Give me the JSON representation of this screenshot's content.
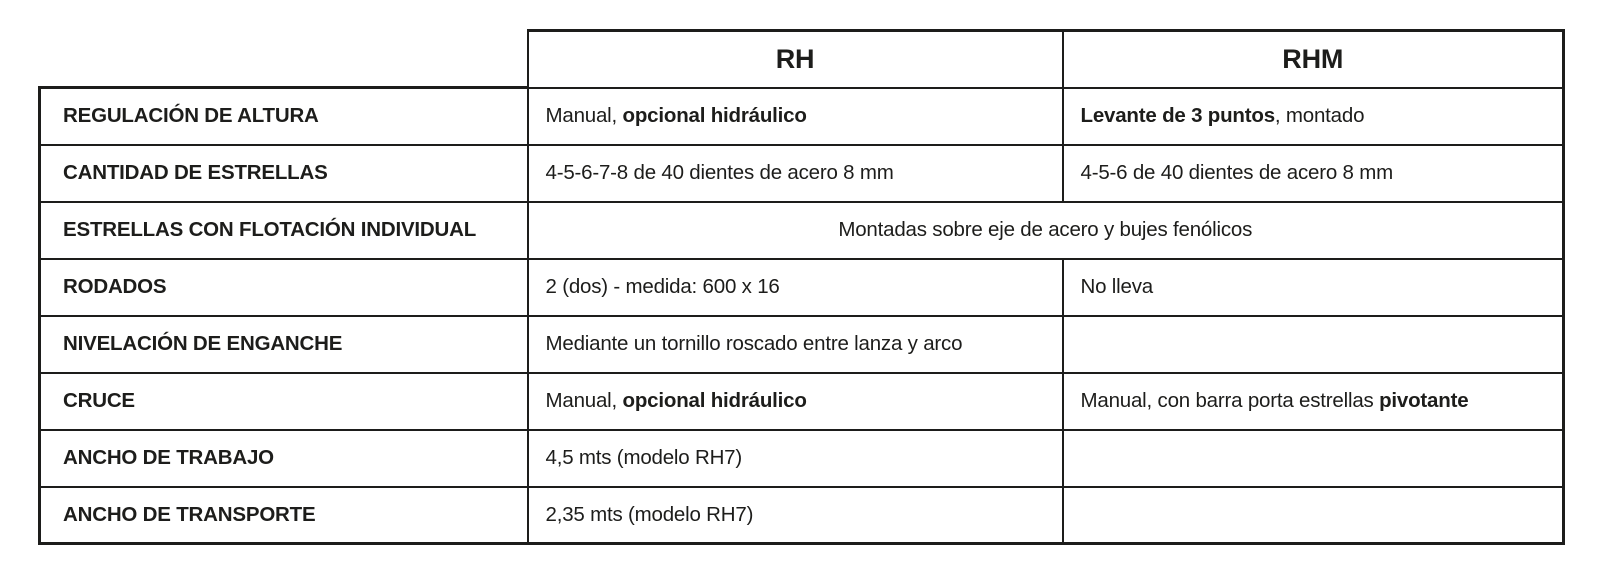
{
  "page": {
    "background_color": "#ffffff",
    "text_color": "#1d1d1b",
    "border_color": "#1d1d1b"
  },
  "table": {
    "header": {
      "col_rh": "RH",
      "col_rhm": "RHM"
    },
    "rows": [
      {
        "label": "REGULACIÓN DE ALTURA",
        "rh": {
          "pre": "Manual, ",
          "bold": "opcional hidráulico",
          "post": ""
        },
        "rhm": {
          "pre": "",
          "bold": "Levante de 3 puntos",
          "post": ", montado"
        }
      },
      {
        "label": "CANTIDAD DE ESTRELLAS",
        "rh": {
          "pre": "4-5-6-7-8 de 40 dientes de acero 8 mm",
          "bold": "",
          "post": ""
        },
        "rhm": {
          "pre": "4-5-6 de 40 dientes de acero 8 mm",
          "bold": "",
          "post": ""
        }
      },
      {
        "label": "ESTRELLAS CON FLOTACIÓN INDIVIDUAL",
        "merged": "Montadas sobre eje de acero y bujes fenólicos"
      },
      {
        "label": "RODADOS",
        "rh": {
          "pre": "2 (dos) - medida: 600 x 16",
          "bold": "",
          "post": ""
        },
        "rhm": {
          "pre": "No lleva",
          "bold": "",
          "post": ""
        }
      },
      {
        "label": "NIVELACIÓN DE ENGANCHE",
        "rh": {
          "pre": "Mediante un tornillo roscado entre lanza y arco",
          "bold": "",
          "post": ""
        },
        "rhm": {
          "pre": "",
          "bold": "",
          "post": ""
        }
      },
      {
        "label": "CRUCE",
        "rh": {
          "pre": "Manual, ",
          "bold": "opcional hidráulico",
          "post": ""
        },
        "rhm": {
          "pre": "Manual, con barra porta estrellas ",
          "bold": "pivotante",
          "post": ""
        }
      },
      {
        "label": "ANCHO DE TRABAJO",
        "rh": {
          "pre": "4,5 mts (modelo RH7)",
          "bold": "",
          "post": ""
        },
        "rhm": {
          "pre": "",
          "bold": "",
          "post": ""
        }
      },
      {
        "label": "ANCHO DE TRANSPORTE",
        "rh": {
          "pre": "2,35 mts (modelo RH7)",
          "bold": "",
          "post": ""
        },
        "rhm": {
          "pre": "",
          "bold": "",
          "post": ""
        }
      }
    ]
  }
}
